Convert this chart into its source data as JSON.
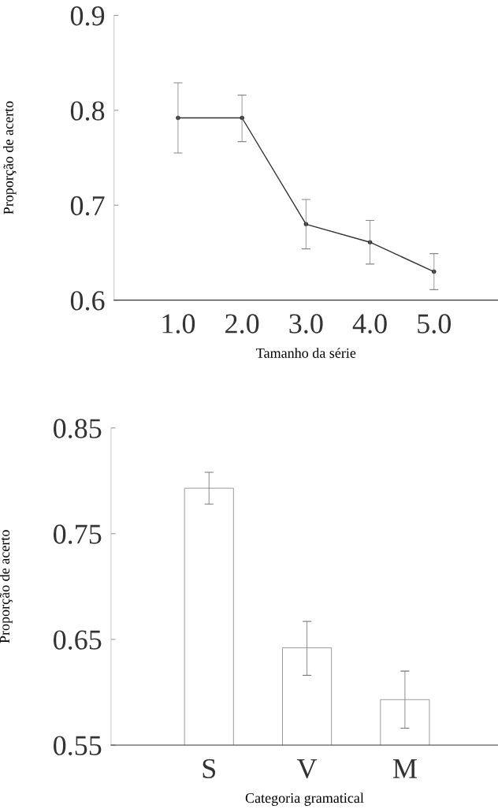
{
  "chart_data": [
    {
      "type": "line",
      "xlabel": "Tamanho da série",
      "ylabel": "Proporção de acerto",
      "x": [
        1,
        2,
        3,
        4,
        5
      ],
      "xlim": [
        0,
        6
      ],
      "xticks": [
        {
          "value": 1,
          "label": "1.0"
        },
        {
          "value": 2,
          "label": "2.0"
        },
        {
          "value": 3,
          "label": "3.0"
        },
        {
          "value": 4,
          "label": "4.0"
        },
        {
          "value": 5,
          "label": "5.0"
        }
      ],
      "ylim": [
        0.6,
        0.9
      ],
      "yticks": [
        0.6,
        0.7,
        0.8,
        0.9
      ],
      "series": [
        {
          "color": "#333333",
          "values": [
            0.792,
            0.792,
            0.68,
            0.661,
            0.63
          ],
          "errors": [
            [
              0.755,
              0.829
            ],
            [
              0.767,
              0.816
            ],
            [
              0.654,
              0.706
            ],
            [
              0.638,
              0.684
            ],
            [
              0.611,
              0.649
            ]
          ]
        }
      ],
      "marker": "circle",
      "line_style": "solid",
      "grid": false
    },
    {
      "type": "bar",
      "xlabel": "Categoria gramatical",
      "ylabel": "Proporção de acerto",
      "categories": [
        "S",
        "V",
        "M"
      ],
      "ylim": [
        0.55,
        0.85
      ],
      "yticks": [
        0.55,
        0.75,
        0.65,
        0.85
      ],
      "series": [
        {
          "color": "#ffffff",
          "values": [
            0.793,
            0.642,
            0.593
          ],
          "errors": [
            [
              0.778,
              0.808
            ],
            [
              0.616,
              0.667
            ],
            [
              0.566,
              0.62
            ]
          ]
        }
      ],
      "grid": false
    }
  ]
}
